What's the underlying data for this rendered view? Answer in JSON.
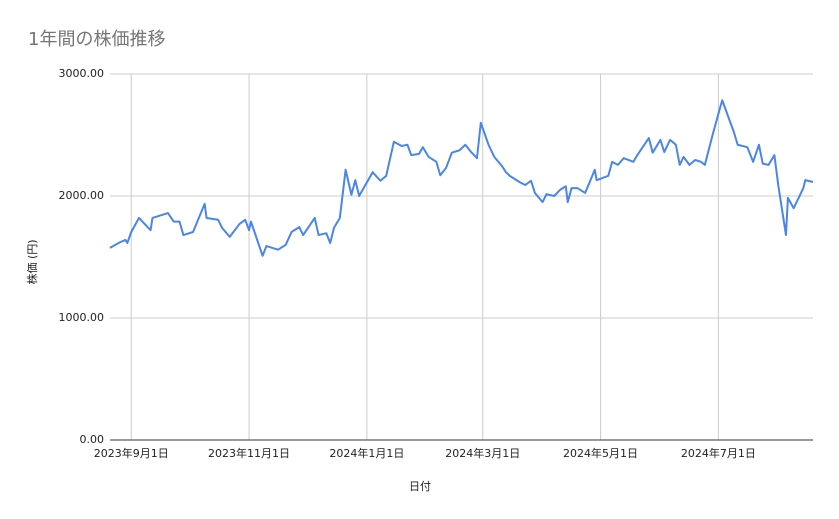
{
  "chart_data": {
    "type": "line",
    "title": "1年間の株価推移",
    "x_label": "日付",
    "y_label": "株価 (円)",
    "x": [
      "2023-08-21",
      "2023-08-26",
      "2023-08-29",
      "2023-08-30",
      "2023-09-01",
      "2023-09-05",
      "2023-09-11",
      "2023-09-12",
      "2023-09-20",
      "2023-09-23",
      "2023-09-26",
      "2023-09-28",
      "2023-10-03",
      "2023-10-09",
      "2023-10-10",
      "2023-10-16",
      "2023-10-18",
      "2023-10-22",
      "2023-10-27",
      "2023-10-30",
      "2023-11-01",
      "2023-11-02",
      "2023-11-08",
      "2023-11-10",
      "2023-11-16",
      "2023-11-20",
      "2023-11-23",
      "2023-11-27",
      "2023-11-29",
      "2023-12-05",
      "2023-12-07",
      "2023-12-11",
      "2023-12-13",
      "2023-12-15",
      "2023-12-18",
      "2023-12-21",
      "2023-12-24",
      "2023-12-26",
      "2023-12-28",
      "2024-01-04",
      "2024-01-08",
      "2024-01-11",
      "2024-01-15",
      "2024-01-19",
      "2024-01-22",
      "2024-01-24",
      "2024-01-28",
      "2024-01-30",
      "2024-02-02",
      "2024-02-06",
      "2024-02-08",
      "2024-02-11",
      "2024-02-14",
      "2024-02-18",
      "2024-02-21",
      "2024-02-24",
      "2024-02-27",
      "2024-02-29",
      "2024-03-04",
      "2024-03-07",
      "2024-03-11",
      "2024-03-13",
      "2024-03-15",
      "2024-03-20",
      "2024-03-23",
      "2024-03-26",
      "2024-03-28",
      "2024-04-01",
      "2024-04-03",
      "2024-04-07",
      "2024-04-10",
      "2024-04-13",
      "2024-04-14",
      "2024-04-16",
      "2024-04-19",
      "2024-04-23",
      "2024-04-25",
      "2024-04-28",
      "2024-04-29",
      "2024-05-05",
      "2024-05-07",
      "2024-05-10",
      "2024-05-13",
      "2024-05-18",
      "2024-05-20",
      "2024-05-26",
      "2024-05-28",
      "2024-06-01",
      "2024-06-03",
      "2024-06-06",
      "2024-06-09",
      "2024-06-11",
      "2024-06-13",
      "2024-06-16",
      "2024-06-19",
      "2024-06-22",
      "2024-06-24",
      "2024-06-28",
      "2024-07-02",
      "2024-07-03",
      "2024-07-09",
      "2024-07-11",
      "2024-07-16",
      "2024-07-19",
      "2024-07-22",
      "2024-07-24",
      "2024-07-27",
      "2024-07-30",
      "2024-08-01",
      "2024-08-05",
      "2024-08-06",
      "2024-08-09",
      "2024-08-14",
      "2024-08-15",
      "2024-08-19"
    ],
    "values": [
      1575,
      1620,
      1640,
      1615,
      1705,
      1820,
      1720,
      1820,
      1860,
      1790,
      1790,
      1680,
      1705,
      1935,
      1820,
      1805,
      1740,
      1665,
      1770,
      1805,
      1720,
      1790,
      1510,
      1590,
      1560,
      1600,
      1705,
      1745,
      1680,
      1820,
      1680,
      1695,
      1615,
      1740,
      1820,
      2215,
      2010,
      2130,
      2000,
      2195,
      2125,
      2165,
      2445,
      2410,
      2420,
      2335,
      2345,
      2400,
      2320,
      2280,
      2170,
      2230,
      2355,
      2375,
      2420,
      2360,
      2310,
      2600,
      2420,
      2320,
      2245,
      2195,
      2165,
      2115,
      2090,
      2125,
      2025,
      1950,
      2015,
      2000,
      2050,
      2080,
      1950,
      2065,
      2065,
      2025,
      2100,
      2215,
      2130,
      2165,
      2280,
      2255,
      2310,
      2280,
      2335,
      2475,
      2355,
      2460,
      2360,
      2460,
      2420,
      2255,
      2320,
      2255,
      2295,
      2280,
      2255,
      2500,
      2730,
      2785,
      2525,
      2420,
      2400,
      2280,
      2420,
      2265,
      2255,
      2335,
      2090,
      1680,
      1985,
      1900,
      2065,
      2130,
      2115
    ],
    "color": "#4a86e8",
    "xlim": [
      "2023-08-21",
      "2024-08-19"
    ],
    "xticks": [
      {
        "value": "2023-09-01",
        "label": "2023年9月1日"
      },
      {
        "value": "2023-11-01",
        "label": "2023年11月1日"
      },
      {
        "value": "2024-01-01",
        "label": "2024年1月1日"
      },
      {
        "value": "2024-03-01",
        "label": "2024年3月1日"
      },
      {
        "value": "2024-05-01",
        "label": "2024年5月1日"
      },
      {
        "value": "2024-07-01",
        "label": "2024年7月1日"
      }
    ],
    "ylim": [
      0,
      3000
    ],
    "yticks": [
      {
        "value": 0,
        "label": "0.00"
      },
      {
        "value": 1000,
        "label": "1000.00"
      },
      {
        "value": 2000,
        "label": "2000.00"
      },
      {
        "value": 3000,
        "label": "3000.00"
      }
    ],
    "grid": true
  }
}
